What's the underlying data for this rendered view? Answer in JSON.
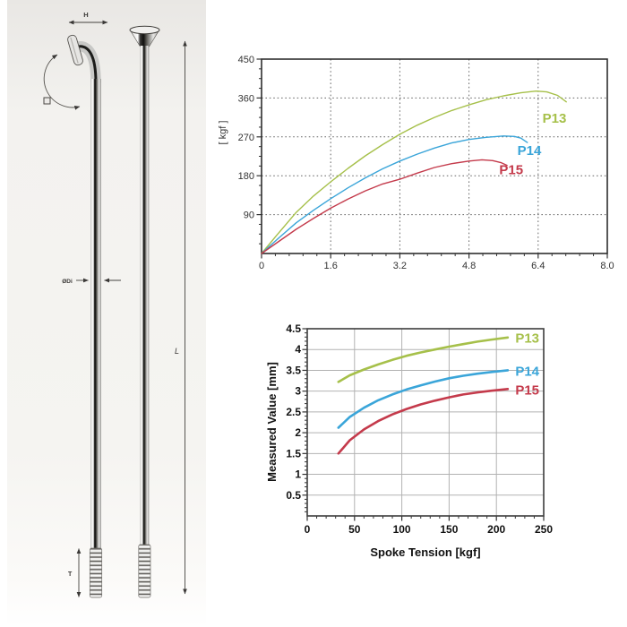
{
  "diagram": {
    "height_label": "H",
    "inner_diameter_label": "ØDi",
    "length_label": "L",
    "thread_label": "T"
  },
  "chart_data": [
    {
      "name": "tension-curve-chart",
      "type": "line",
      "title": "",
      "xlabel": "",
      "ylabel": "[ kgf ]",
      "xlim": [
        0,
        8
      ],
      "ylim": [
        0,
        450
      ],
      "grid": "dashed",
      "legend_position": "inline-right",
      "x_ticks": {
        "values": [
          0,
          1.6,
          3.2,
          4.8,
          6.4,
          8
        ],
        "labels": [
          "0",
          "1.6",
          "3.2",
          "4.8",
          "6.4",
          "8.0"
        ]
      },
      "y_ticks": {
        "values": [
          90,
          180,
          270,
          360,
          450
        ],
        "labels": [
          "90",
          "180",
          "270",
          "360",
          "450"
        ]
      },
      "series": [
        {
          "name": "P13",
          "color": "#a6c04a",
          "label_x": 6.5,
          "label_y": 313,
          "points": [
            [
              0,
              0
            ],
            [
              0.35,
              42
            ],
            [
              0.8,
              95
            ],
            [
              1.2,
              133
            ],
            [
              1.6,
              166
            ],
            [
              2.0,
              197
            ],
            [
              2.4,
              226
            ],
            [
              2.8,
              252
            ],
            [
              3.2,
              276
            ],
            [
              3.6,
              297
            ],
            [
              4.0,
              315
            ],
            [
              4.4,
              331
            ],
            [
              4.8,
              344
            ],
            [
              5.2,
              356
            ],
            [
              5.6,
              365
            ],
            [
              6.0,
              372
            ],
            [
              6.35,
              376
            ],
            [
              6.6,
              374
            ],
            [
              6.85,
              366
            ],
            [
              7.05,
              351
            ]
          ]
        },
        {
          "name": "P14",
          "color": "#3aa5d9",
          "label_x": 5.92,
          "label_y": 238,
          "points": [
            [
              0,
              0
            ],
            [
              0.4,
              36
            ],
            [
              0.8,
              71
            ],
            [
              1.2,
              100
            ],
            [
              1.6,
              127
            ],
            [
              2.0,
              152
            ],
            [
              2.4,
              175
            ],
            [
              2.8,
              196
            ],
            [
              3.2,
              214
            ],
            [
              3.6,
              230
            ],
            [
              4.0,
              244
            ],
            [
              4.4,
              256
            ],
            [
              4.8,
              264
            ],
            [
              5.2,
              269
            ],
            [
              5.6,
              272
            ],
            [
              5.85,
              271
            ],
            [
              6.0,
              267
            ],
            [
              6.15,
              257
            ]
          ]
        },
        {
          "name": "P15",
          "color": "#c43a4b",
          "label_x": 5.5,
          "label_y": 194,
          "points": [
            [
              0,
              0
            ],
            [
              0.4,
              28
            ],
            [
              0.8,
              56
            ],
            [
              1.2,
              81
            ],
            [
              1.6,
              105
            ],
            [
              2.0,
              126
            ],
            [
              2.4,
              145
            ],
            [
              2.8,
              161
            ],
            [
              3.2,
              172
            ],
            [
              3.6,
              186
            ],
            [
              4.0,
              199
            ],
            [
              4.4,
              208
            ],
            [
              4.8,
              214
            ],
            [
              5.1,
              217
            ],
            [
              5.35,
              215
            ],
            [
              5.55,
              210
            ],
            [
              5.68,
              204
            ]
          ]
        }
      ]
    },
    {
      "name": "measured-value-chart",
      "type": "line",
      "title": "",
      "xlabel": "Spoke Tension [kgf]",
      "ylabel": "Measured Value [mm]",
      "xlim": [
        0,
        250
      ],
      "ylim": [
        0,
        4.5
      ],
      "grid": "solid",
      "legend_position": "inline-right",
      "x_ticks": {
        "values": [
          0,
          50,
          100,
          150,
          200,
          250
        ],
        "labels": [
          "0",
          "50",
          "100",
          "150",
          "200",
          "250"
        ]
      },
      "y_ticks": {
        "values": [
          0.5,
          1,
          1.5,
          2,
          2.5,
          3,
          3.5,
          4,
          4.5
        ],
        "labels": [
          "0.5",
          "1",
          "1.5",
          "2",
          "2.5",
          "3",
          "3.5",
          "4",
          "4.5"
        ]
      },
      "series": [
        {
          "name": "P13",
          "color": "#a6c04a",
          "label_x": 220,
          "label_y": 4.27,
          "points": [
            [
              33,
              3.22
            ],
            [
              45,
              3.38
            ],
            [
              60,
              3.52
            ],
            [
              75,
              3.64
            ],
            [
              90,
              3.75
            ],
            [
              105,
              3.85
            ],
            [
              120,
              3.93
            ],
            [
              135,
              4.0
            ],
            [
              150,
              4.07
            ],
            [
              165,
              4.13
            ],
            [
              180,
              4.19
            ],
            [
              195,
              4.24
            ],
            [
              212,
              4.29
            ]
          ]
        },
        {
          "name": "P14",
          "color": "#3aa5d9",
          "label_x": 220,
          "label_y": 3.48,
          "points": [
            [
              33,
              2.12
            ],
            [
              45,
              2.38
            ],
            [
              60,
              2.6
            ],
            [
              75,
              2.78
            ],
            [
              90,
              2.92
            ],
            [
              105,
              3.04
            ],
            [
              120,
              3.14
            ],
            [
              135,
              3.23
            ],
            [
              150,
              3.31
            ],
            [
              165,
              3.37
            ],
            [
              180,
              3.42
            ],
            [
              195,
              3.46
            ],
            [
              212,
              3.5
            ]
          ]
        },
        {
          "name": "P15",
          "color": "#c43a4b",
          "label_x": 220,
          "label_y": 3.02,
          "points": [
            [
              33,
              1.5
            ],
            [
              45,
              1.82
            ],
            [
              60,
              2.08
            ],
            [
              75,
              2.28
            ],
            [
              90,
              2.44
            ],
            [
              105,
              2.57
            ],
            [
              120,
              2.68
            ],
            [
              135,
              2.77
            ],
            [
              150,
              2.85
            ],
            [
              165,
              2.92
            ],
            [
              180,
              2.97
            ],
            [
              195,
              3.01
            ],
            [
              212,
              3.05
            ]
          ]
        }
      ]
    }
  ]
}
